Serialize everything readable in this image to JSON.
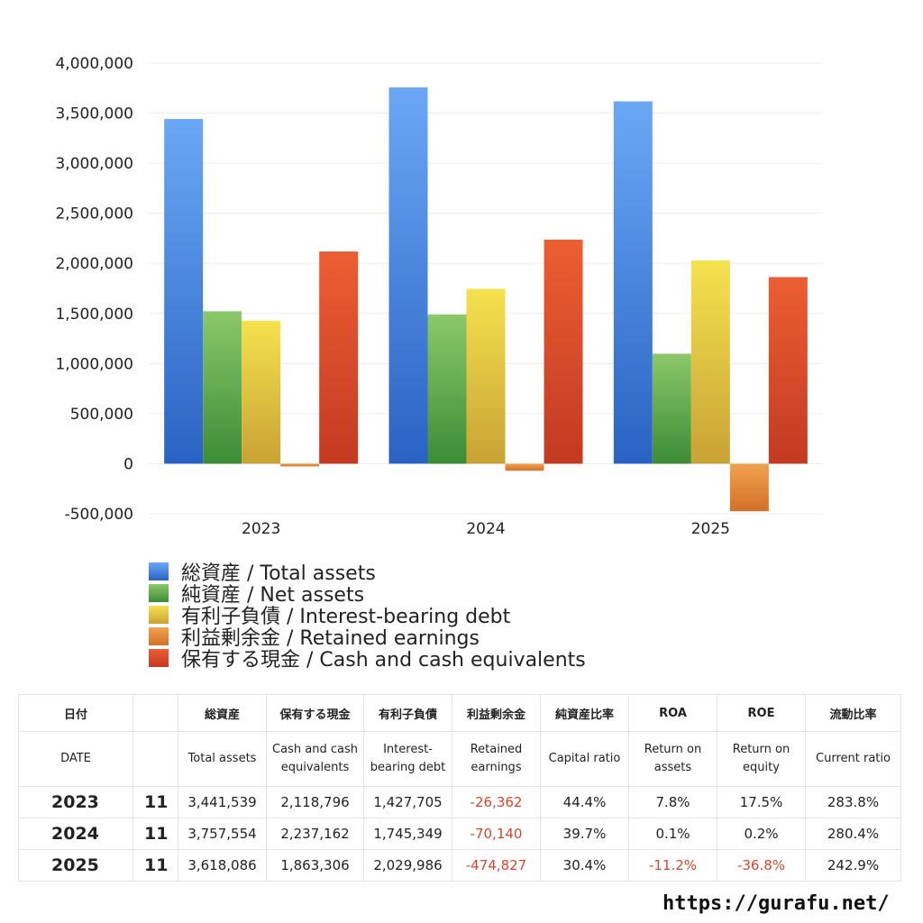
{
  "chart_data": {
    "type": "bar",
    "categories": [
      "2023",
      "2024",
      "2025"
    ],
    "ylim": [
      -500000,
      4000000
    ],
    "yticks": [
      "4,000,000",
      "3,500,000",
      "3,000,000",
      "2,500,000",
      "2,000,000",
      "1,500,000",
      "1,000,000",
      "500,000",
      "0",
      "-500,000"
    ],
    "ytick_values": [
      4000000,
      3500000,
      3000000,
      2500000,
      2000000,
      1500000,
      1000000,
      500000,
      0,
      -500000
    ],
    "grid": true,
    "legend_placement": "bottom",
    "series": [
      {
        "name": "総資産 / Total assets",
        "values": [
          3441539,
          3757554,
          3618086
        ],
        "color": "#3b7fdc"
      },
      {
        "name": "純資産 / Net assets",
        "values": [
          1522000,
          1489000,
          1098000
        ],
        "color": "#58a845"
      },
      {
        "name": "有利子負債 / Interest-bearing debt",
        "values": [
          1427705,
          1745349,
          2029986
        ],
        "color": "#e7cc3d"
      },
      {
        "name": "利益剰余金 / Retained earnings",
        "values": [
          -26362,
          -70140,
          -474827
        ],
        "color": "#e6863a"
      },
      {
        "name": "保有する現金 /  Cash and cash equivalents",
        "values": [
          2118796,
          2237162,
          1863306
        ],
        "color": "#dd4a2a"
      }
    ]
  },
  "table": {
    "header_jp": [
      "日付",
      "",
      "総資産",
      "保有する現金",
      "有利子負債",
      "利益剰余金",
      "純資産比率",
      "ROA",
      "ROE",
      "流動比率"
    ],
    "header_en": [
      "DATE",
      "",
      "Total assets",
      "Cash and cash equivalents",
      "Interest-bearing debt",
      "Retained earnings",
      "Capital ratio",
      "Return on assets",
      "Return on equity",
      "Current ratio"
    ],
    "rows": [
      [
        "2023",
        "11",
        "3,441,539",
        "2,118,796",
        "1,427,705",
        "-26,362",
        "44.4%",
        "7.8%",
        "17.5%",
        "283.8%"
      ],
      [
        "2024",
        "11",
        "3,757,554",
        "2,237,162",
        "1,745,349",
        "-70,140",
        "39.7%",
        "0.1%",
        "0.2%",
        "280.4%"
      ],
      [
        "2025",
        "11",
        "3,618,086",
        "1,863,306",
        "2,029,986",
        "-474,827",
        "30.4%",
        "-11.2%",
        "-36.8%",
        "242.9%"
      ]
    ]
  },
  "site": "https://gurafu.net/"
}
